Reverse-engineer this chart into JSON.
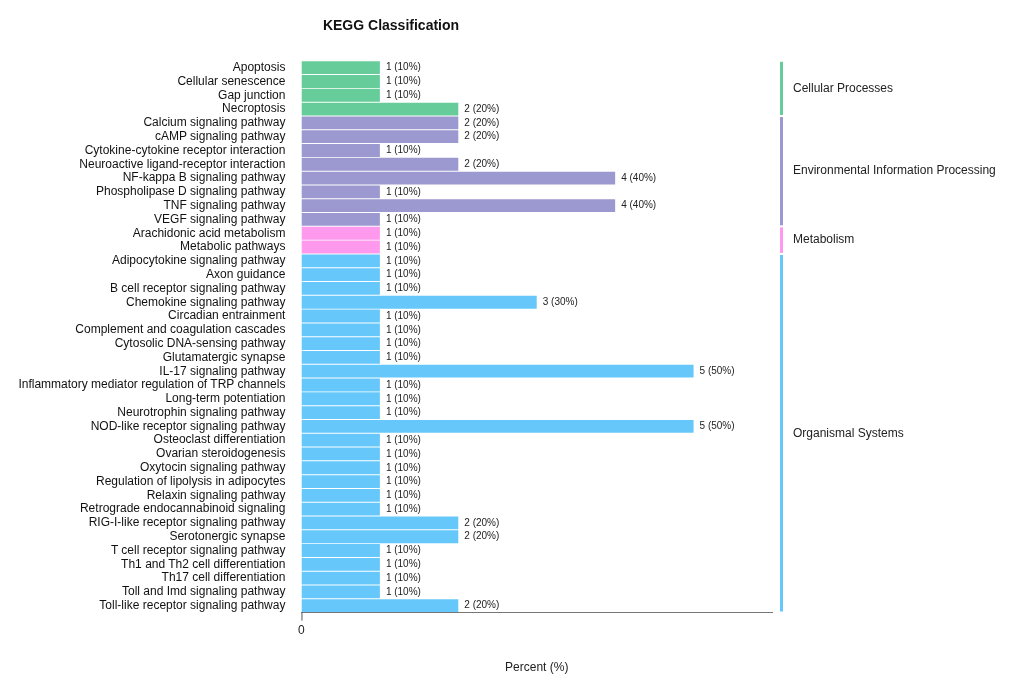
{
  "chart_data": {
    "type": "bar",
    "orientation": "horizontal",
    "stacked": true,
    "title": "KEGG Classification",
    "xlabel": "Percent (%)",
    "categories": [
      "Apoptosis",
      "Cellular senescence",
      "Gap junction",
      "Necroptosis",
      "Calcium signaling pathway",
      "cAMP signaling pathway",
      "Cytokine-cytokine receptor interaction",
      "Neuroactive ligand-receptor interaction",
      "NF-kappa B signaling pathway",
      "Phospholipase D signaling pathway",
      "TNF signaling pathway",
      "VEGF signaling pathway",
      "Arachidonic acid metabolism",
      "Metabolic pathways",
      "Adipocytokine signaling pathway",
      "Axon guidance",
      "B cell receptor signaling pathway",
      "Chemokine signaling pathway",
      "Circadian entrainment",
      "Complement and coagulation cascades",
      "Cytosolic DNA-sensing pathway",
      "Glutamatergic synapse",
      "IL-17 signaling pathway",
      "Inflammatory mediator regulation of TRP channels",
      "Long-term potentiation",
      "Neurotrophin signaling pathway",
      "NOD-like receptor signaling pathway",
      "Osteoclast differentiation",
      "Ovarian steroidogenesis",
      "Oxytocin signaling pathway",
      "Regulation of lipolysis in adipocytes",
      "Relaxin signaling pathway",
      "Retrograde endocannabinoid signaling",
      "RIG-I-like receptor signaling pathway",
      "Serotonergic synapse",
      "T cell receptor signaling pathway",
      "Th1 and Th2 cell differentiation",
      "Th17 cell differentiation",
      "Toll and Imd signaling pathway",
      "Toll-like receptor signaling pathway"
    ],
    "series": [
      {
        "name": "Cellular Processes",
        "color": "#66cc99",
        "values": [
          10,
          10,
          10,
          20,
          null,
          null,
          null,
          null,
          null,
          null,
          null,
          null,
          null,
          null,
          null,
          null,
          null,
          null,
          null,
          null,
          null,
          null,
          null,
          null,
          null,
          null,
          null,
          null,
          null,
          null,
          null,
          null,
          null,
          null,
          null,
          null,
          null,
          null,
          null,
          null
        ],
        "value_labels": [
          "1 (10%)",
          "1 (10%)",
          "1 (10%)",
          "2 (20%)",
          null,
          null,
          null,
          null,
          null,
          null,
          null,
          null,
          null,
          null,
          null,
          null,
          null,
          null,
          null,
          null,
          null,
          null,
          null,
          null,
          null,
          null,
          null,
          null,
          null,
          null,
          null,
          null,
          null,
          null,
          null,
          null,
          null,
          null,
          null,
          null
        ]
      },
      {
        "name": "Environmental Information Processing",
        "color": "#9b99cf",
        "values": [
          null,
          null,
          null,
          null,
          20,
          20,
          10,
          20,
          40,
          10,
          40,
          10,
          null,
          null,
          null,
          null,
          null,
          null,
          null,
          null,
          null,
          null,
          null,
          null,
          null,
          null,
          null,
          null,
          null,
          null,
          null,
          null,
          null,
          null,
          null,
          null,
          null,
          null,
          null,
          null
        ],
        "value_labels": [
          null,
          null,
          null,
          null,
          "2 (20%)",
          "2 (20%)",
          "1 (10%)",
          "2 (20%)",
          "4 (40%)",
          "1 (10%)",
          "4 (40%)",
          "1 (10%)",
          null,
          null,
          null,
          null,
          null,
          null,
          null,
          null,
          null,
          null,
          null,
          null,
          null,
          null,
          null,
          null,
          null,
          null,
          null,
          null,
          null,
          null,
          null,
          null,
          null,
          null,
          null,
          null
        ]
      },
      {
        "name": "Metabolism",
        "color": "#ff99ee",
        "values": [
          null,
          null,
          null,
          null,
          null,
          null,
          null,
          null,
          null,
          null,
          null,
          null,
          10,
          10,
          null,
          null,
          null,
          null,
          null,
          null,
          null,
          null,
          null,
          null,
          null,
          null,
          null,
          null,
          null,
          null,
          null,
          null,
          null,
          null,
          null,
          null,
          null,
          null,
          null,
          null
        ],
        "value_labels": [
          null,
          null,
          null,
          null,
          null,
          null,
          null,
          null,
          null,
          null,
          null,
          null,
          "1 (10%)",
          "1 (10%)",
          null,
          null,
          null,
          null,
          null,
          null,
          null,
          null,
          null,
          null,
          null,
          null,
          null,
          null,
          null,
          null,
          null,
          null,
          null,
          null,
          null,
          null,
          null,
          null,
          null,
          null
        ]
      },
      {
        "name": "Organismal Systems",
        "color": "#66c8fa",
        "values": [
          null,
          null,
          null,
          null,
          null,
          null,
          null,
          null,
          null,
          null,
          null,
          null,
          null,
          null,
          10,
          10,
          10,
          30,
          10,
          10,
          10,
          10,
          50,
          10,
          10,
          10,
          50,
          10,
          10,
          10,
          10,
          10,
          10,
          20,
          20,
          10,
          10,
          10,
          10,
          20
        ],
        "value_labels": [
          null,
          null,
          null,
          null,
          null,
          null,
          null,
          null,
          null,
          null,
          null,
          null,
          null,
          null,
          "1 (10%)",
          "1 (10%)",
          "1 (10%)",
          "3 (30%)",
          "1 (10%)",
          "1 (10%)",
          "1 (10%)",
          "1 (10%)",
          "5 (50%)",
          "1 (10%)",
          "1 (10%)",
          "1 (10%)",
          "5 (50%)",
          "1 (10%)",
          "1 (10%)",
          "1 (10%)",
          "1 (10%)",
          "1 (10%)",
          "1 (10%)",
          "2 (20%)",
          "2 (20%)",
          "1 (10%)",
          "1 (10%)",
          "1 (10%)",
          "1 (10%)",
          "2 (20%)"
        ]
      }
    ],
    "annotations": [
      "0"
    ],
    "legend": "right"
  }
}
